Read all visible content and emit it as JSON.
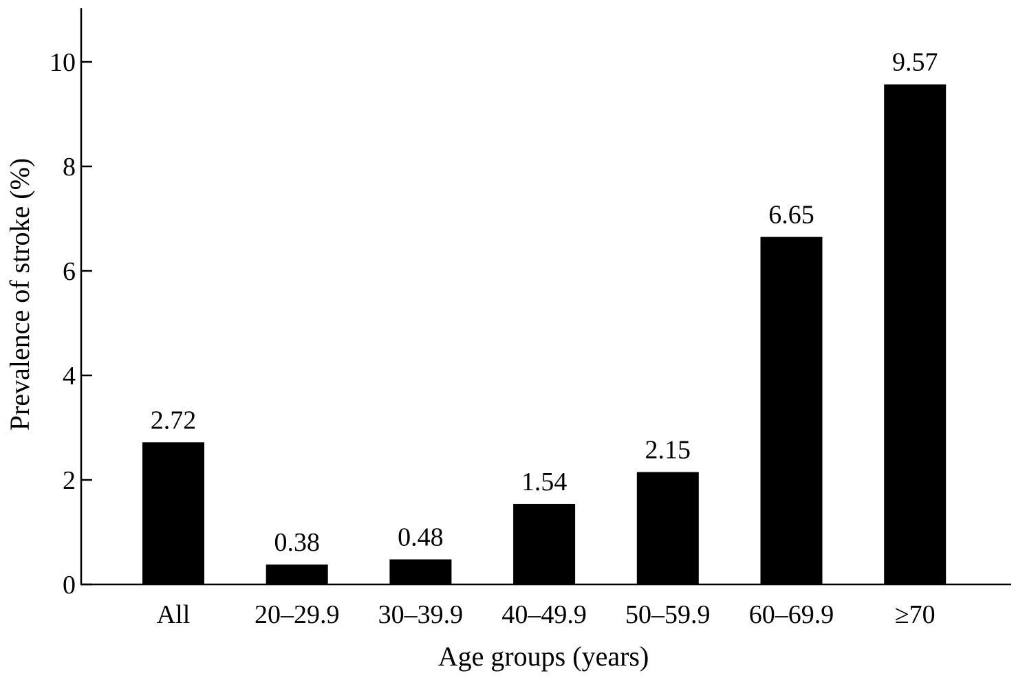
{
  "chart_data": {
    "type": "bar",
    "categories": [
      "All",
      "20–29.9",
      "30–39.9",
      "40–49.9",
      "50–59.9",
      "60–69.9",
      "≥70"
    ],
    "values": [
      2.72,
      0.38,
      0.48,
      1.54,
      2.15,
      6.65,
      9.57
    ],
    "value_labels": [
      "2.72",
      "0.38",
      "0.48",
      "1.54",
      "2.15",
      "6.65",
      "9.57"
    ],
    "xlabel": "Age groups (years)",
    "ylabel": "Prevalence of stroke (%)",
    "ylim": [
      0,
      11
    ],
    "yticks": [
      0,
      2,
      4,
      6,
      8,
      10
    ],
    "ytick_labels": [
      "0",
      "2",
      "4",
      "6",
      "8",
      "10"
    ],
    "grid": false,
    "legend": "none",
    "bar_color": "#000000"
  }
}
